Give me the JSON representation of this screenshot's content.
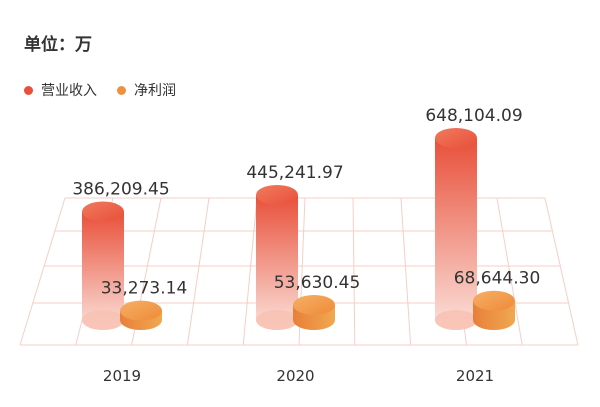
{
  "unit_label": "单位：万",
  "colors": {
    "revenue_top": "#e8503a",
    "revenue_bottom": "#f6c6bd",
    "profit": "#f09140",
    "grid": "#f5cfc6"
  },
  "chart_data": {
    "type": "bar",
    "title": "",
    "unit": "万",
    "categories": [
      "2019",
      "2020",
      "2021"
    ],
    "legend_position": "top-left",
    "grid": true,
    "series": [
      {
        "name": "营业收入",
        "values": [
          386209.45,
          445241.97,
          648104.09
        ],
        "labels": [
          "386,209.45",
          "445,241.97",
          "648,104.09"
        ]
      },
      {
        "name": "净利润",
        "values": [
          33273.14,
          53630.45,
          68644.3
        ],
        "labels": [
          "33,273.14",
          "53,630.45",
          "68,644.30"
        ]
      }
    ]
  }
}
